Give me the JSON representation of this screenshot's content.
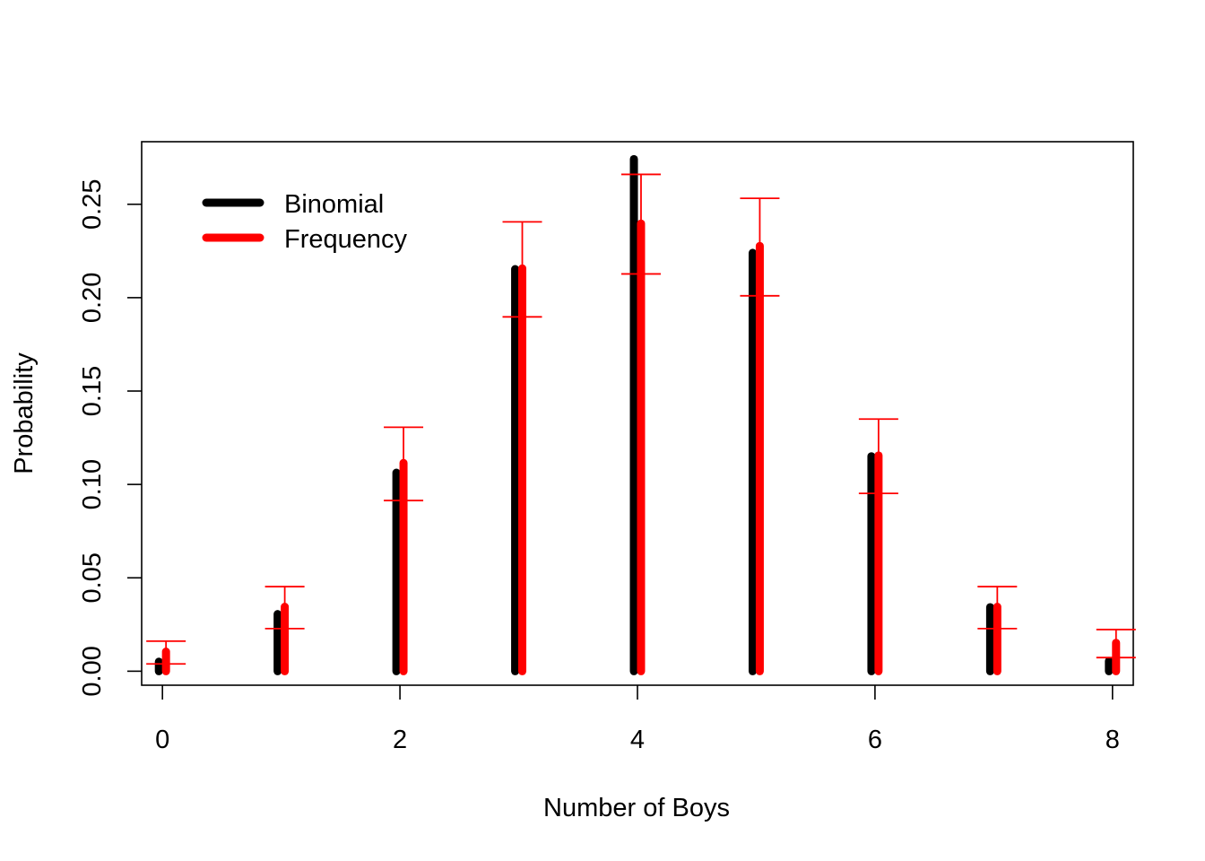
{
  "chart_data": {
    "type": "bar",
    "x": [
      0,
      1,
      2,
      3,
      4,
      5,
      6,
      7,
      8
    ],
    "xlabel": "Number of Boys",
    "ylabel": "Probability",
    "xlim": [
      -0.175,
      8.175
    ],
    "ylim": [
      -0.0075,
      0.2835
    ],
    "x_ticks": [
      0,
      2,
      4,
      6,
      8
    ],
    "x_tick_labels": [
      "0",
      "2",
      "4",
      "6",
      "8"
    ],
    "y_ticks": [
      0.0,
      0.05,
      0.1,
      0.15,
      0.2,
      0.25
    ],
    "y_tick_labels": [
      "0.00",
      "0.05",
      "0.10",
      "0.15",
      "0.20",
      "0.25"
    ],
    "grid": false,
    "legend": {
      "position": "top-left"
    },
    "series": [
      {
        "name": "Binomial",
        "color": "#000000",
        "values": [
          0.0051,
          0.0306,
          0.1063,
          0.2153,
          0.2742,
          0.224,
          0.1151,
          0.0343,
          0.0055
        ]
      },
      {
        "name": "Frequency",
        "color": "#ff0000",
        "values": [
          0.0105,
          0.0345,
          0.1115,
          0.2157,
          0.2397,
          0.2277,
          0.1155,
          0.0345,
          0.0152
        ],
        "error_low": [
          0.0039,
          0.0228,
          0.0914,
          0.1897,
          0.2127,
          0.201,
          0.0952,
          0.0228,
          0.0073
        ],
        "error_high": [
          0.0161,
          0.0453,
          0.1306,
          0.2406,
          0.266,
          0.2532,
          0.135,
          0.0453,
          0.0223
        ]
      }
    ]
  }
}
